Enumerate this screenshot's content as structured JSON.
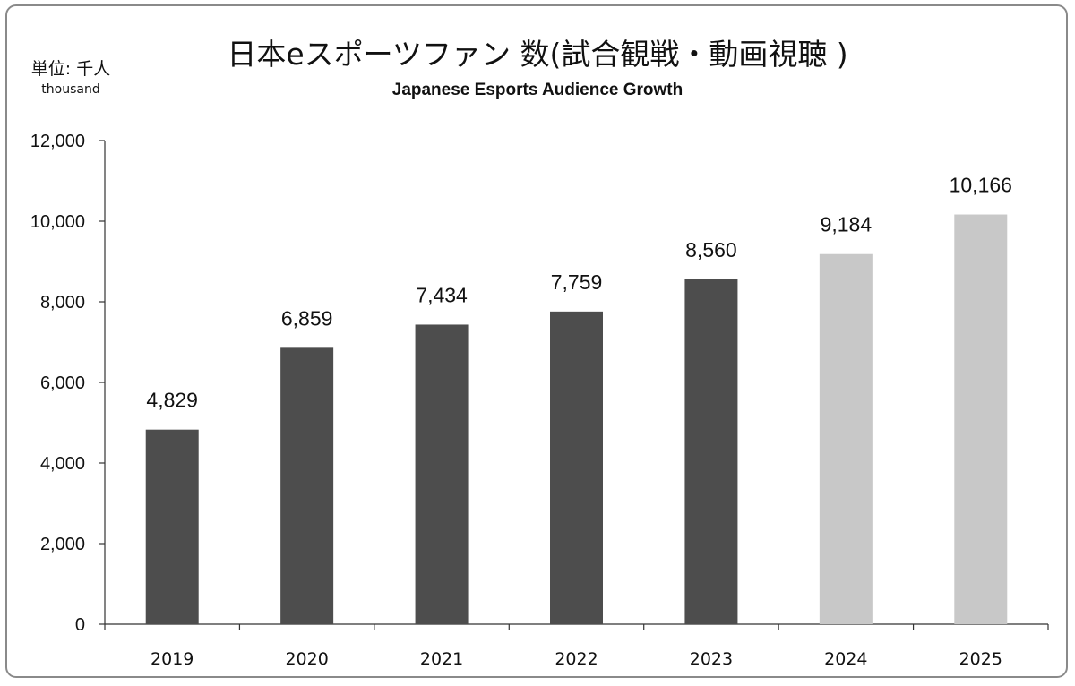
{
  "title": "日本eスポーツファン 数(試合観戦・動画視聴 )",
  "subtitle": "Japanese Esports Audience Growth",
  "unit": {
    "main": "単位: 千人",
    "sub": "thousand"
  },
  "chart_data": {
    "type": "bar",
    "title": "日本eスポーツファン 数(試合観戦・動画視聴 )",
    "subtitle": "Japanese Esports Audience Growth",
    "xlabel": "",
    "ylabel": "単位: 千人 thousand",
    "categories": [
      "2019",
      "2020",
      "2021",
      "2022",
      "2023",
      "2024",
      "2025"
    ],
    "values": [
      4829,
      6859,
      7434,
      7759,
      8560,
      9184,
      10166
    ],
    "value_labels": [
      "4,829",
      "6,859",
      "7,434",
      "7,759",
      "8,560",
      "9,184",
      "10,166"
    ],
    "ylim": [
      0,
      12000
    ],
    "yticks": [
      0,
      2000,
      4000,
      6000,
      8000,
      10000,
      12000
    ],
    "ytick_labels": [
      "0",
      "2,000",
      "4,000",
      "6,000",
      "8,000",
      "10,000",
      "12,000"
    ],
    "bar_colors": [
      "#4d4d4d",
      "#4d4d4d",
      "#4d4d4d",
      "#4d4d4d",
      "#4d4d4d",
      "#c8c8c8",
      "#c8c8c8"
    ],
    "grid": false,
    "legend": "none"
  }
}
